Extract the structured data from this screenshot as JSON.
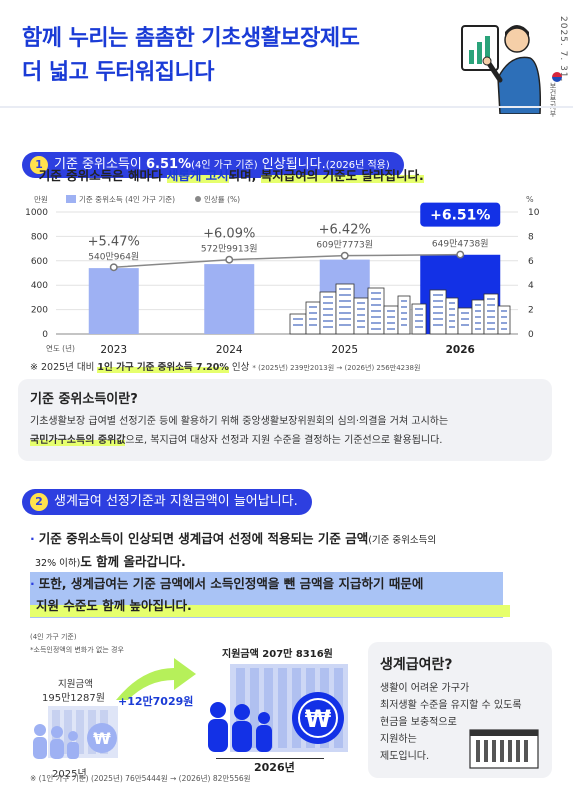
{
  "header": {
    "title_line1": "함께 누리는 촘촘한 기초생활보장제도",
    "title_line2": "더 넓고 두터워집니다",
    "date": "2025. 7. 31.",
    "ministry": "보건복지부"
  },
  "section1": {
    "num": "1",
    "pill_pre": "기준 중위소득이 ",
    "pill_bold": "6.51%",
    "pill_small": "(4인 가구 기준)",
    "pill_post": " 인상됩니다.",
    "pill_year": "(2026년 적용)",
    "bullet_pre": "기준 중위소득은 해마다 ",
    "bullet_hl1": "새롭게 고시",
    "bullet_mid": "되며, ",
    "bullet_hl2": "복지급여의 기준도 달라집니다."
  },
  "chart_data": {
    "type": "bar",
    "left_unit": "만원",
    "right_unit": "%",
    "legend_bar": "기준 중위소득 (4인 가구 기준)",
    "legend_line": "인상률 (%)",
    "x_axis_label": "연도 (년)",
    "categories": [
      "2023",
      "2024",
      "2025",
      "2026"
    ],
    "values": [
      540.0964,
      572.9913,
      609.7773,
      649.4738
    ],
    "value_labels": [
      "540만964원",
      "572만9913원",
      "609만7773원",
      "649만4738원"
    ],
    "rates": [
      5.47,
      6.09,
      6.42,
      6.51
    ],
    "rate_labels": [
      "+5.47%",
      "+6.09%",
      "+6.42%",
      "+6.51%"
    ],
    "ylim": [
      0,
      1000
    ],
    "yticks": [
      "0",
      "200",
      "400",
      "600",
      "800",
      "1000"
    ],
    "y2lim": [
      0,
      10
    ],
    "y2ticks": [
      "0",
      "2",
      "4",
      "6",
      "8",
      "10"
    ],
    "colors": {
      "bar": "#9eb1f3",
      "bar_highlight": "#1331e6",
      "line": "#888888"
    }
  },
  "chart_note": {
    "prefix": "※ 2025년 대비 ",
    "hl": "1인 가구 기준 중위소득 7.20%",
    "suffix": " 인상",
    "small": "* (2025년) 239만2013원 → (2026년) 256만4238원"
  },
  "box1": {
    "title": "기준 중위소득이란?",
    "line1": "기초생활보장 급여별 선정기준 등에 활용하기 위해 중앙생활보장위원회의 심의·의결을 거쳐 고시하는",
    "line2_hl": "국민가구소득의 중위값",
    "line2_rest": "으로, 복지급여 대상자 선정과 지원 수준을 결정하는 기준선으로 활용됩니다."
  },
  "section2": {
    "num": "2",
    "pill": "생계급여 선정기준과 지원금액이 늘어납니다.",
    "bullet1_pre": "기준 중위소득이 인상되면 생계급여 선정에 적용되는 기준 금액",
    "bullet1_small": "(기준 중위소득의",
    "bullet1_line2_small": "32% 이하)",
    "bullet1_line2": "도 함께 올라갑니다.",
    "bullet2_line1": "또한, 생계급여는 기준 금액에서 소득인정액을 뺀 금액을 지급하기 때문에",
    "bullet2_line2": "지원 수준도 함께 높아집니다."
  },
  "infographic": {
    "basis": "(4인 가구 기준)",
    "assumption": "*소득인정액의 변화가 없는 경우",
    "label_2025_title": "지원금액",
    "amount_2025": "195만1287원",
    "increase": "+12만7029원",
    "amount_2026": "지원금액 207만 8316원",
    "year_2025": "2025년",
    "year_2026": "2026년",
    "footnote": "※ (1인 가구 기준) (2025년) 76만5444원 → (2026년) 82만556원"
  },
  "box2": {
    "title": "생계급여란?",
    "lines": [
      "생활이 어려운 가구가",
      "최저생활 수준을 유지할 수 있도록",
      "현금을 보충적으로",
      "지원하는",
      "제도입니다."
    ]
  }
}
